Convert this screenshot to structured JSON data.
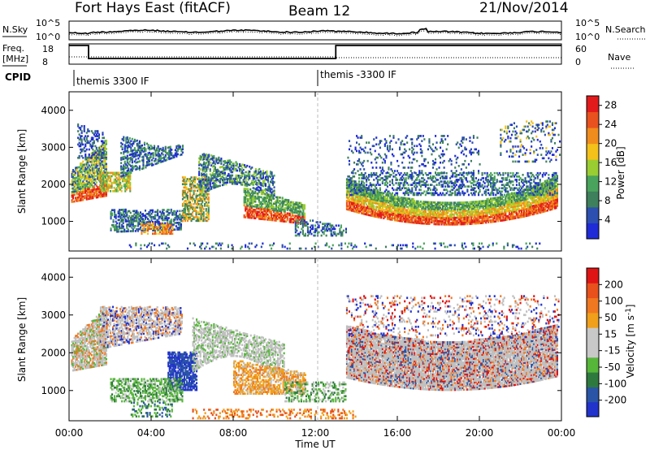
{
  "header": {
    "station": "Fort Hays East (fitACF)",
    "beam": "Beam 12",
    "date": "21/Nov/2014"
  },
  "noise_panel": {
    "left_label": "N.Sky",
    "right_label": "N.Search",
    "left_ticks": [
      "10^5",
      "10^0"
    ],
    "right_ticks": [
      "10^5",
      "10^0"
    ]
  },
  "freq_panel": {
    "left_label_1": "Freq.",
    "left_label_2": "[MHz]",
    "right_label": "Nave",
    "left_ticks": [
      "18",
      "8"
    ],
    "right_ticks": [
      "60",
      "0"
    ]
  },
  "cpid_panel": {
    "label": "CPID",
    "segments": [
      "themis 3300 IF",
      "themis -3300 IF"
    ]
  },
  "colors": {
    "power_scale": [
      "#1f2bd6",
      "#2c4fb0",
      "#3e7f5c",
      "#4aa35c",
      "#9acd32",
      "#f3c11a",
      "#f08c1d",
      "#e9511f",
      "#e31a1c"
    ],
    "velocity_scale": [
      "#2233cc",
      "#2a55a6",
      "#2e7a3e",
      "#56b63a",
      "#c8c8c8",
      "#c8c8c8",
      "#f0a01a",
      "#f07820",
      "#e8501c",
      "#e01414"
    ],
    "ground_scatter": "#c0c0c0"
  },
  "chart_data": [
    {
      "type": "heatmap",
      "panel": "power",
      "xlabel": "Time UT",
      "ylabel": "Slant Range [km]",
      "xlim": [
        0,
        24
      ],
      "ylim": [
        200,
        4500
      ],
      "x_ticks": [
        "00:00",
        "04:00",
        "08:00",
        "12:00",
        "16:00",
        "20:00",
        "00:00"
      ],
      "y_ticks": [
        "1000",
        "2000",
        "3000",
        "4000"
      ],
      "colorbar": {
        "label": "Power [dB]",
        "range": [
          0,
          30
        ],
        "ticks": [
          "4",
          "8",
          "12",
          "16",
          "20",
          "24",
          "28"
        ]
      }
    },
    {
      "type": "heatmap",
      "panel": "velocity",
      "xlabel": "Time UT",
      "ylabel": "Slant Range [km]",
      "xlim": [
        0,
        24
      ],
      "ylim": [
        200,
        4500
      ],
      "x_ticks": [
        "00:00",
        "04:00",
        "08:00",
        "12:00",
        "16:00",
        "20:00",
        "00:00"
      ],
      "y_ticks": [
        "1000",
        "2000",
        "3000",
        "4000"
      ],
      "colorbar": {
        "label": "Velocity [m s^-1]",
        "range": [
          -250,
          250
        ],
        "ticks": [
          "200",
          "100",
          "50",
          "15",
          "-15",
          "-50",
          "-100",
          "-200"
        ]
      }
    }
  ]
}
